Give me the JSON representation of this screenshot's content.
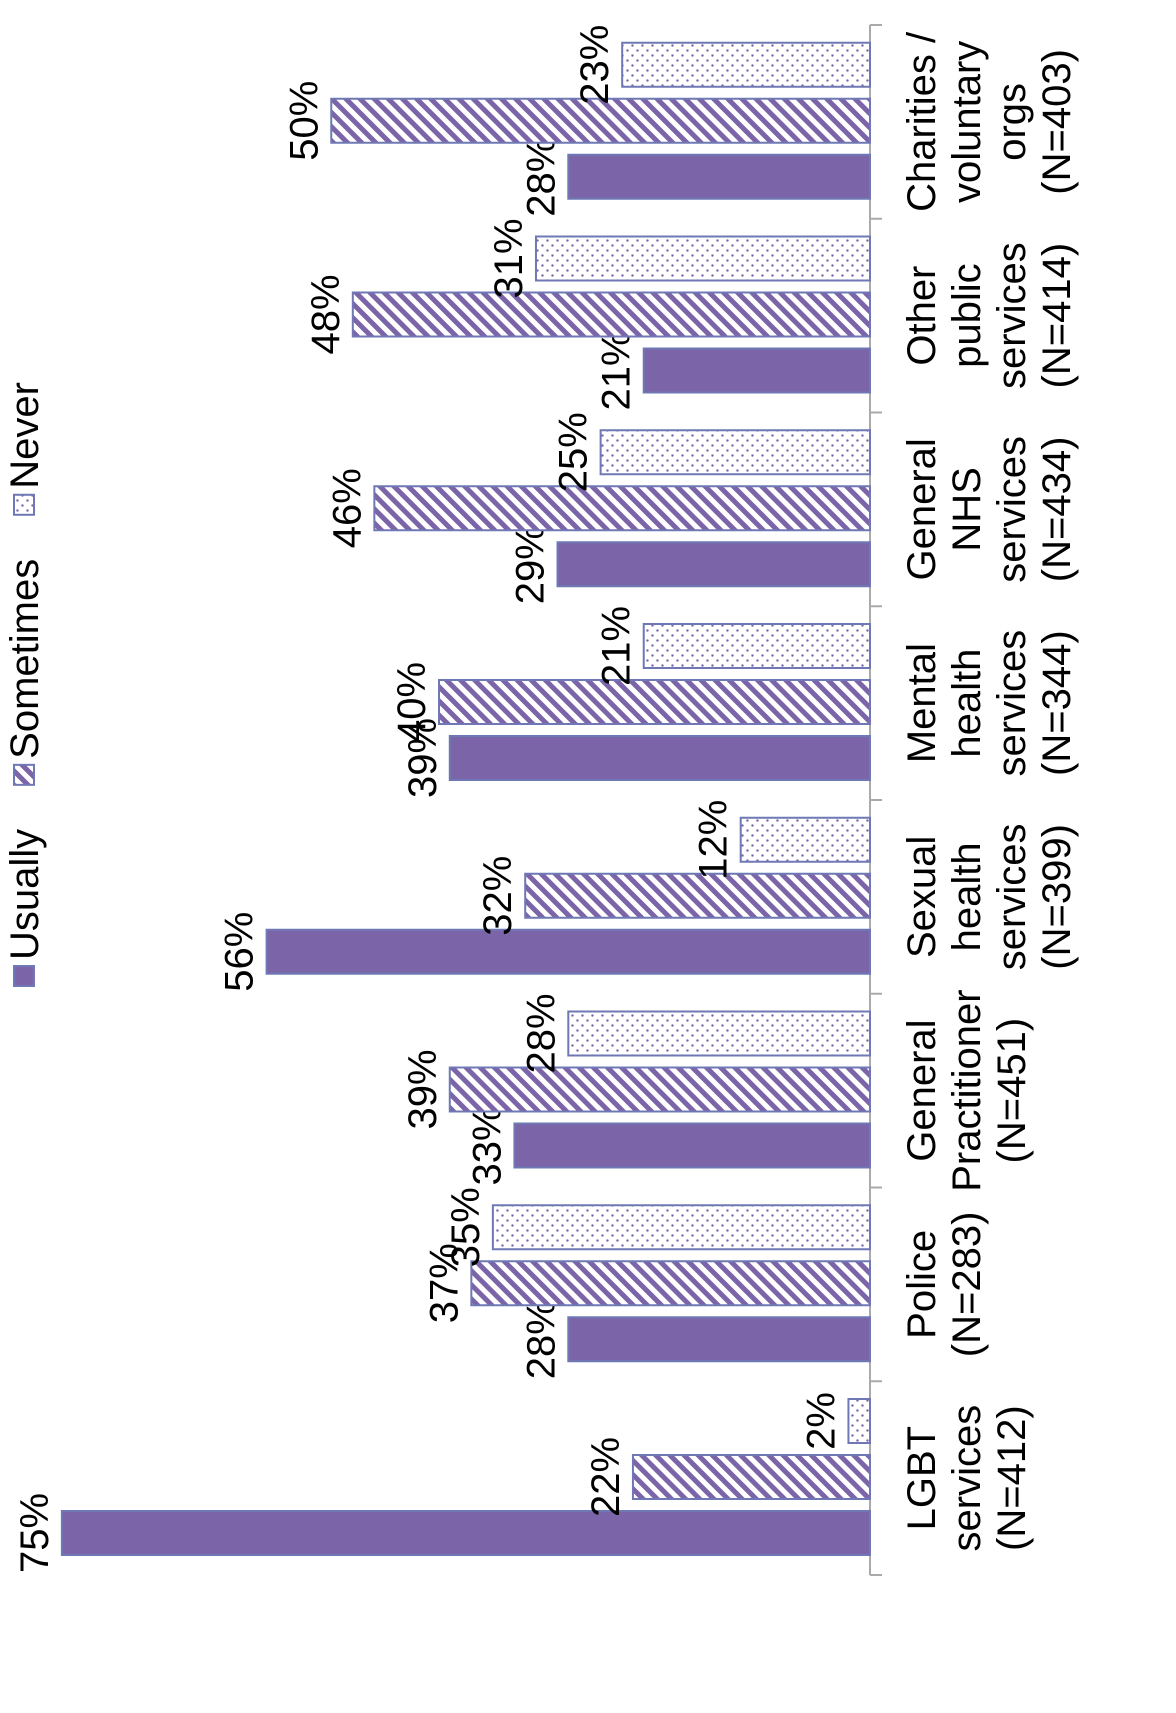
{
  "chart_data": {
    "type": "bar",
    "categories": [
      [
        "LGBT",
        "services",
        "(N=412)"
      ],
      [
        "Police",
        "(N=283)"
      ],
      [
        "General",
        "Practitioner",
        "(N=451)"
      ],
      [
        "Sexual",
        "health",
        "services",
        "(N=399)"
      ],
      [
        "Mental",
        "health",
        "services",
        "(N=344)"
      ],
      [
        "General",
        "NHS",
        "services",
        "(N=434)"
      ],
      [
        "Other",
        "public",
        "services",
        "(N=414)"
      ],
      [
        "Charities /",
        "voluntary",
        "orgs",
        "(N=403)"
      ]
    ],
    "series": [
      {
        "name": "Usually",
        "color": "#7b64a8",
        "fill_pattern": "solid",
        "values": [
          75,
          28,
          33,
          56,
          39,
          29,
          21,
          28
        ],
        "value_labels": [
          "75%",
          "28%",
          "33%",
          "56%",
          "39%",
          "29%",
          "21%",
          "28%"
        ]
      },
      {
        "name": "Sometimes",
        "color": "#7b64a8",
        "fill_pattern": "hatch",
        "values": [
          22,
          37,
          39,
          32,
          40,
          46,
          48,
          50
        ],
        "value_labels": [
          "22%",
          "37%",
          "39%",
          "32%",
          "40%",
          "46%",
          "48%",
          "50%"
        ]
      },
      {
        "name": "Never",
        "color": "#7b64a8",
        "fill_pattern": "dots",
        "values": [
          2,
          35,
          28,
          12,
          21,
          25,
          31,
          23
        ],
        "value_labels": [
          "2%",
          "35%",
          "28%",
          "12%",
          "21%",
          "25%",
          "31%",
          "23%"
        ]
      }
    ],
    "ylim": [
      0,
      80
    ],
    "rotated": true
  }
}
